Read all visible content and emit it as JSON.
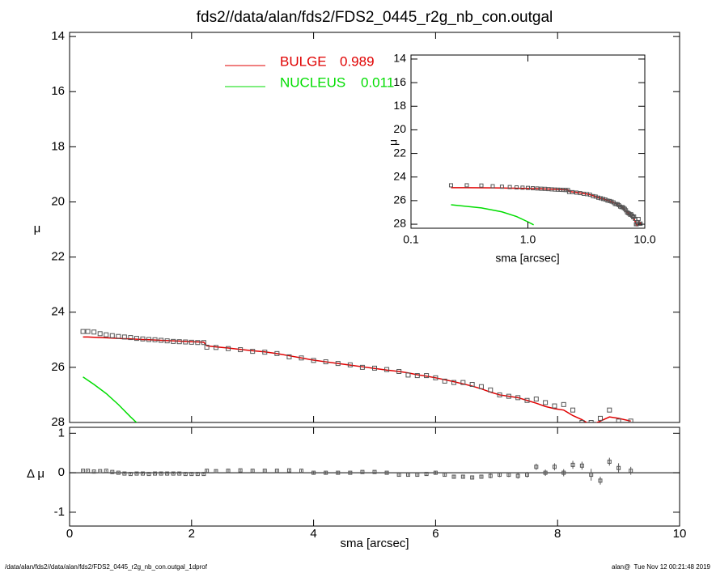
{
  "chart_data": [
    {
      "type": "profile",
      "title": "fds2//data/alan/fds2/FDS2_0445_r2g_nb_con.outgal",
      "ylabel": "μ",
      "xlim": [
        0,
        10
      ],
      "ylim": [
        28,
        13.85
      ],
      "yticks": [
        14,
        16,
        18,
        20,
        22,
        24,
        26,
        28
      ],
      "color": "#555555",
      "x": [
        0.22,
        0.3,
        0.4,
        0.5,
        0.6,
        0.7,
        0.8,
        0.9,
        1.0,
        1.1,
        1.2,
        1.3,
        1.4,
        1.5,
        1.6,
        1.7,
        1.8,
        1.9,
        2.0,
        2.1,
        2.2,
        2.25,
        2.4,
        2.6,
        2.8,
        3.0,
        3.2,
        3.4,
        3.6,
        3.8,
        4.0,
        4.2,
        4.4,
        4.6,
        4.8,
        5.0,
        5.2,
        5.4,
        5.55,
        5.7,
        5.85,
        6.0,
        6.15,
        6.3,
        6.45,
        6.6,
        6.75,
        6.9,
        7.05,
        7.2,
        7.35,
        7.5,
        7.65,
        7.8,
        7.95,
        8.1,
        8.25,
        8.4,
        8.55,
        8.7,
        8.85,
        9.0,
        9.2
      ],
      "values": [
        24.7,
        24.7,
        24.72,
        24.78,
        24.82,
        24.85,
        24.88,
        24.9,
        24.92,
        24.95,
        24.97,
        24.99,
        25.0,
        25.02,
        25.04,
        25.06,
        25.07,
        25.08,
        25.09,
        25.1,
        25.1,
        25.27,
        25.28,
        25.32,
        25.36,
        25.42,
        25.45,
        25.5,
        25.62,
        25.66,
        25.75,
        25.8,
        25.86,
        25.91,
        26.0,
        26.03,
        26.08,
        26.15,
        26.28,
        26.3,
        26.3,
        26.38,
        26.5,
        26.55,
        26.55,
        26.62,
        26.7,
        26.82,
        27.0,
        27.05,
        27.1,
        27.2,
        27.15,
        27.28,
        27.4,
        27.35,
        27.55,
        28.0,
        28.0,
        27.85,
        27.55,
        27.95,
        27.95
      ],
      "series": [
        {
          "name": "BULGE",
          "fraction": 0.989,
          "color": "#e00000",
          "values": [
            24.9,
            24.9,
            24.91,
            24.92,
            24.93,
            24.94,
            24.95,
            24.96,
            24.97,
            24.98,
            24.99,
            25.0,
            25.01,
            25.02,
            25.03,
            25.04,
            25.05,
            25.06,
            25.07,
            25.08,
            25.09,
            25.22,
            25.26,
            25.3,
            25.35,
            25.4,
            25.44,
            25.5,
            25.58,
            25.66,
            25.74,
            25.8,
            25.86,
            25.92,
            25.98,
            26.04,
            26.1,
            26.15,
            26.2,
            26.27,
            26.32,
            26.38,
            26.45,
            26.52,
            26.6,
            26.68,
            26.78,
            26.9,
            27.0,
            27.05,
            27.1,
            27.2,
            27.3,
            27.42,
            27.5,
            27.55,
            27.75,
            27.9,
            28.1,
            27.95,
            27.8,
            27.85,
            27.95
          ]
        },
        {
          "name": "NUCLEUS",
          "fraction": 0.011,
          "color": "#00dd00",
          "x": [
            0.22,
            0.4,
            0.6,
            0.8,
            1.0,
            1.12
          ],
          "values": [
            26.35,
            26.62,
            26.95,
            27.35,
            27.8,
            28.05
          ]
        }
      ]
    },
    {
      "type": "residual",
      "ylabel": "Δ μ",
      "xlabel": "sma [arcsec]",
      "xlim": [
        0,
        10
      ],
      "xticks": [
        0,
        2,
        4,
        6,
        8,
        10
      ],
      "ylim": [
        -1.35,
        1.15
      ],
      "yticks": [
        -1,
        0,
        1
      ],
      "color": "#555555",
      "values": [
        0.05,
        0.05,
        0.03,
        0.04,
        0.05,
        0.02,
        0.0,
        -0.02,
        -0.03,
        -0.02,
        -0.02,
        -0.03,
        -0.02,
        -0.02,
        -0.02,
        -0.02,
        -0.02,
        -0.03,
        -0.03,
        -0.03,
        -0.03,
        0.05,
        0.04,
        0.05,
        0.06,
        0.05,
        0.05,
        0.05,
        0.06,
        0.05,
        0.0,
        0.0,
        0.0,
        0.0,
        0.02,
        0.02,
        0.0,
        -0.05,
        -0.05,
        -0.05,
        -0.03,
        0.0,
        -0.05,
        -0.1,
        -0.1,
        -0.12,
        -0.1,
        -0.08,
        -0.05,
        -0.05,
        -0.08,
        -0.05,
        0.15,
        0.0,
        0.15,
        0.0,
        0.2,
        0.18,
        -0.05,
        -0.2,
        0.28,
        0.12,
        0.05
      ],
      "errors": [
        0.02,
        0.02,
        0.02,
        0.02,
        0.02,
        0.02,
        0.02,
        0.02,
        0.02,
        0.02,
        0.02,
        0.02,
        0.02,
        0.02,
        0.02,
        0.02,
        0.02,
        0.02,
        0.02,
        0.02,
        0.02,
        0.03,
        0.03,
        0.03,
        0.03,
        0.03,
        0.03,
        0.03,
        0.03,
        0.03,
        0.03,
        0.03,
        0.03,
        0.03,
        0.03,
        0.03,
        0.03,
        0.04,
        0.04,
        0.04,
        0.04,
        0.04,
        0.05,
        0.05,
        0.05,
        0.05,
        0.05,
        0.06,
        0.06,
        0.06,
        0.07,
        0.07,
        0.08,
        0.08,
        0.09,
        0.09,
        0.1,
        0.1,
        0.15,
        0.1,
        0.1,
        0.12,
        0.1
      ]
    },
    {
      "type": "inset",
      "ylabel": "μ",
      "xlabel": "sma [arcsec]",
      "xlog": true,
      "xlim": [
        0.1,
        10
      ],
      "xticks": [
        0.1,
        {
          "value": 1,
          "label": "1.0"
        },
        {
          "value": 10,
          "label": "10.0"
        }
      ],
      "ylim": [
        28.34,
        13.66
      ],
      "yticks": [
        14,
        16,
        18,
        20,
        22,
        24,
        26,
        28
      ]
    }
  ],
  "footer": {
    "left": "/data/alan/fds2//data/alan/fds2/FDS2_0445_r2g_nb_con.outgal_1dprof",
    "right": "alan@  Tue Nov 12 00:21:48 2019"
  }
}
